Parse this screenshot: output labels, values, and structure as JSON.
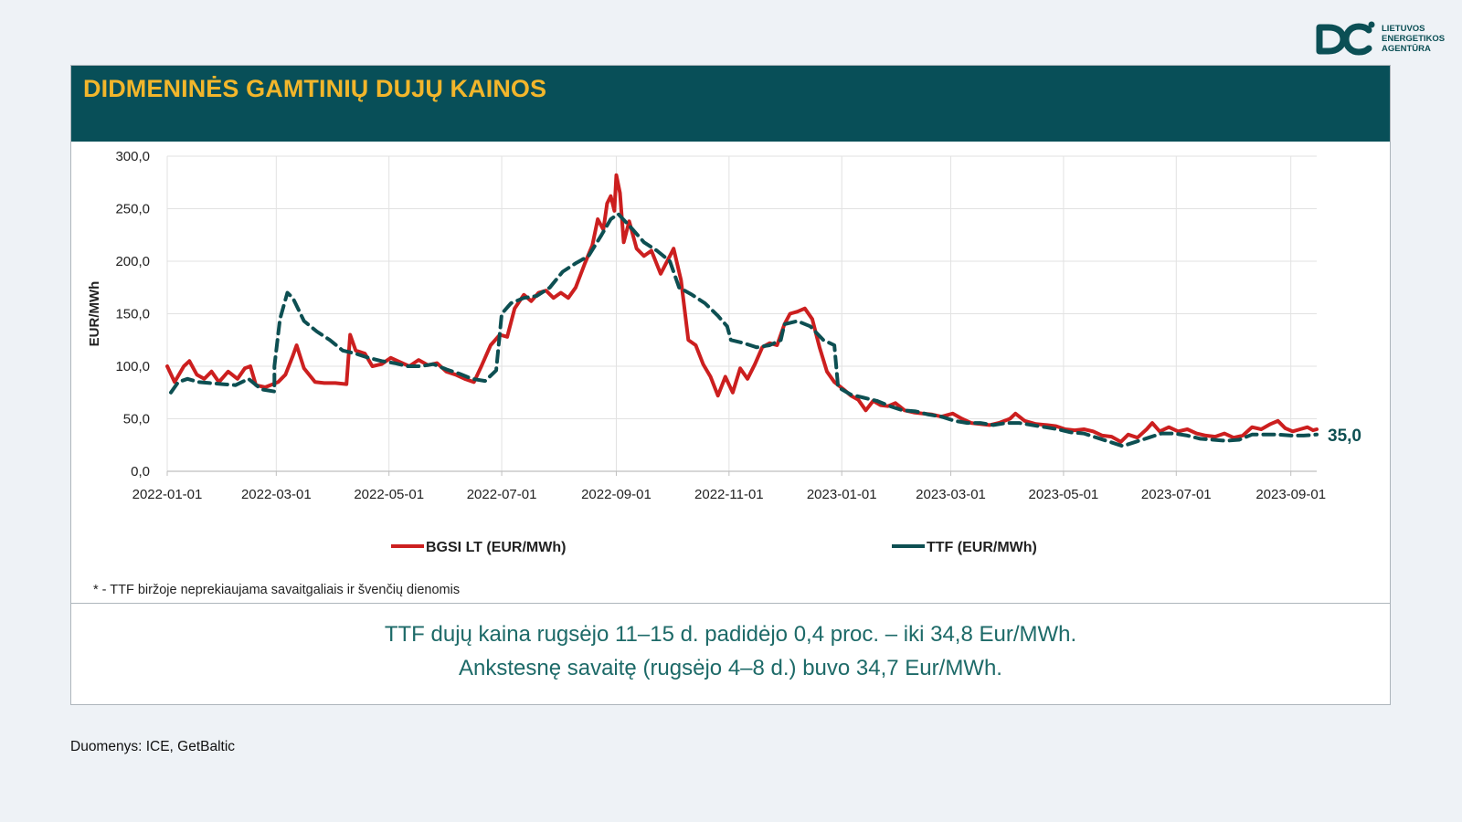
{
  "logo": {
    "line1": "LIETUVOS",
    "line2": "ENERGETIKOS",
    "line3": "AGENTŪRA"
  },
  "title": "DIDMENINĖS GAMTINIŲ DUJŲ KAINOS",
  "footnote": "* - TTF biržoje neprekiaujama savaitgaliais ir švenčių dienomis",
  "summary": {
    "line1": "TTF dujų kaina rugsėjo 11–15 d. padidėjo 0,4 proc. – iki 34,8 Eur/MWh.",
    "line2": "Ankstesnę savaitę (rugsėjo 4–8 d.) buvo 34,7 Eur/MWh."
  },
  "source": "Duomenys: ICE, GetBaltic",
  "colors": {
    "header": "#084f58",
    "title": "#f2b62b",
    "bgsi": "#cc1f1f",
    "ttf": "#0d4f52",
    "grid": "#e2e2e2"
  },
  "chart_data": {
    "type": "line",
    "ylabel": "EUR/MWh",
    "ylim": [
      0,
      300
    ],
    "yticks": [
      "0,0",
      "50,0",
      "100,0",
      "150,0",
      "200,0",
      "250,0",
      "300,0"
    ],
    "xlim": [
      "2022-01-01",
      "2023-09-15"
    ],
    "xticks": [
      "2022-01-01",
      "2022-03-01",
      "2022-05-01",
      "2022-07-01",
      "2022-09-01",
      "2022-11-01",
      "2023-01-01",
      "2023-03-01",
      "2023-05-01",
      "2023-07-01",
      "2023-09-01"
    ],
    "grid": true,
    "legend_position": "bottom",
    "end_label": "35,0",
    "series": [
      {
        "name": "BGSI LT (EUR/MWh)",
        "color": "#cc1f1f",
        "style": "solid",
        "points": [
          [
            "2022-01-01",
            100
          ],
          [
            "2022-01-05",
            85
          ],
          [
            "2022-01-10",
            100
          ],
          [
            "2022-01-13",
            105
          ],
          [
            "2022-01-17",
            92
          ],
          [
            "2022-01-21",
            88
          ],
          [
            "2022-01-25",
            95
          ],
          [
            "2022-01-29",
            85
          ],
          [
            "2022-02-03",
            95
          ],
          [
            "2022-02-08",
            88
          ],
          [
            "2022-02-12",
            98
          ],
          [
            "2022-02-15",
            100
          ],
          [
            "2022-02-18",
            82
          ],
          [
            "2022-02-23",
            80
          ],
          [
            "2022-03-02",
            85
          ],
          [
            "2022-03-06",
            92
          ],
          [
            "2022-03-10",
            110
          ],
          [
            "2022-03-12",
            120
          ],
          [
            "2022-03-16",
            98
          ],
          [
            "2022-03-22",
            85
          ],
          [
            "2022-03-27",
            84
          ],
          [
            "2022-04-02",
            84
          ],
          [
            "2022-04-08",
            83
          ],
          [
            "2022-04-10",
            130
          ],
          [
            "2022-04-13",
            115
          ],
          [
            "2022-04-18",
            112
          ],
          [
            "2022-04-22",
            100
          ],
          [
            "2022-04-27",
            102
          ],
          [
            "2022-05-02",
            108
          ],
          [
            "2022-05-07",
            104
          ],
          [
            "2022-05-12",
            100
          ],
          [
            "2022-05-17",
            106
          ],
          [
            "2022-05-22",
            101
          ],
          [
            "2022-05-27",
            103
          ],
          [
            "2022-06-01",
            95
          ],
          [
            "2022-06-06",
            92
          ],
          [
            "2022-06-11",
            88
          ],
          [
            "2022-06-16",
            85
          ],
          [
            "2022-06-20",
            100
          ],
          [
            "2022-06-25",
            120
          ],
          [
            "2022-06-30",
            130
          ],
          [
            "2022-07-04",
            128
          ],
          [
            "2022-07-08",
            155
          ],
          [
            "2022-07-13",
            168
          ],
          [
            "2022-07-17",
            162
          ],
          [
            "2022-07-21",
            170
          ],
          [
            "2022-07-25",
            172
          ],
          [
            "2022-07-29",
            165
          ],
          [
            "2022-08-02",
            170
          ],
          [
            "2022-08-06",
            165
          ],
          [
            "2022-08-10",
            175
          ],
          [
            "2022-08-15",
            198
          ],
          [
            "2022-08-19",
            215
          ],
          [
            "2022-08-22",
            240
          ],
          [
            "2022-08-25",
            230
          ],
          [
            "2022-08-27",
            255
          ],
          [
            "2022-08-29",
            262
          ],
          [
            "2022-08-31",
            248
          ],
          [
            "2022-09-01",
            282
          ],
          [
            "2022-09-03",
            265
          ],
          [
            "2022-09-05",
            218
          ],
          [
            "2022-09-08",
            238
          ],
          [
            "2022-09-12",
            212
          ],
          [
            "2022-09-16",
            205
          ],
          [
            "2022-09-20",
            210
          ],
          [
            "2022-09-25",
            188
          ],
          [
            "2022-09-30",
            205
          ],
          [
            "2022-10-02",
            212
          ],
          [
            "2022-10-06",
            182
          ],
          [
            "2022-10-10",
            125
          ],
          [
            "2022-10-14",
            120
          ],
          [
            "2022-10-18",
            102
          ],
          [
            "2022-10-22",
            90
          ],
          [
            "2022-10-26",
            72
          ],
          [
            "2022-10-30",
            90
          ],
          [
            "2022-11-03",
            75
          ],
          [
            "2022-11-07",
            98
          ],
          [
            "2022-11-11",
            88
          ],
          [
            "2022-11-15",
            102
          ],
          [
            "2022-11-19",
            118
          ],
          [
            "2022-11-23",
            122
          ],
          [
            "2022-11-27",
            120
          ],
          [
            "2022-12-01",
            140
          ],
          [
            "2022-12-04",
            150
          ],
          [
            "2022-12-08",
            152
          ],
          [
            "2022-12-12",
            155
          ],
          [
            "2022-12-16",
            145
          ],
          [
            "2022-12-20",
            118
          ],
          [
            "2022-12-24",
            95
          ],
          [
            "2022-12-28",
            85
          ],
          [
            "2023-01-02",
            78
          ],
          [
            "2023-01-06",
            72
          ],
          [
            "2023-01-10",
            68
          ],
          [
            "2023-01-14",
            58
          ],
          [
            "2023-01-18",
            67
          ],
          [
            "2023-01-22",
            63
          ],
          [
            "2023-01-26",
            62
          ],
          [
            "2023-01-30",
            65
          ],
          [
            "2023-02-04",
            58
          ],
          [
            "2023-02-09",
            56
          ],
          [
            "2023-02-14",
            55
          ],
          [
            "2023-02-19",
            54
          ],
          [
            "2023-02-24",
            52
          ],
          [
            "2023-03-02",
            55
          ],
          [
            "2023-03-07",
            50
          ],
          [
            "2023-03-12",
            46
          ],
          [
            "2023-03-17",
            45
          ],
          [
            "2023-03-22",
            44
          ],
          [
            "2023-03-27",
            46
          ],
          [
            "2023-04-02",
            50
          ],
          [
            "2023-04-05",
            55
          ],
          [
            "2023-04-10",
            48
          ],
          [
            "2023-04-16",
            45
          ],
          [
            "2023-04-22",
            44
          ],
          [
            "2023-04-27",
            43
          ],
          [
            "2023-05-02",
            40
          ],
          [
            "2023-05-07",
            39
          ],
          [
            "2023-05-12",
            40
          ],
          [
            "2023-05-17",
            38
          ],
          [
            "2023-05-22",
            34
          ],
          [
            "2023-05-27",
            33
          ],
          [
            "2023-06-01",
            28
          ],
          [
            "2023-06-05",
            35
          ],
          [
            "2023-06-10",
            32
          ],
          [
            "2023-06-15",
            40
          ],
          [
            "2023-06-18",
            46
          ],
          [
            "2023-06-22",
            38
          ],
          [
            "2023-06-27",
            42
          ],
          [
            "2023-07-02",
            38
          ],
          [
            "2023-07-07",
            40
          ],
          [
            "2023-07-12",
            36
          ],
          [
            "2023-07-17",
            34
          ],
          [
            "2023-07-22",
            33
          ],
          [
            "2023-07-27",
            36
          ],
          [
            "2023-08-01",
            32
          ],
          [
            "2023-08-06",
            34
          ],
          [
            "2023-08-11",
            42
          ],
          [
            "2023-08-16",
            40
          ],
          [
            "2023-08-21",
            45
          ],
          [
            "2023-08-25",
            48
          ],
          [
            "2023-08-29",
            41
          ],
          [
            "2023-09-02",
            38
          ],
          [
            "2023-09-06",
            40
          ],
          [
            "2023-09-10",
            42
          ],
          [
            "2023-09-13",
            39
          ],
          [
            "2023-09-15",
            40
          ]
        ]
      },
      {
        "name": "TTF (EUR/MWh)",
        "color": "#0d4f52",
        "style": "dashed",
        "points": [
          [
            "2022-01-03",
            75
          ],
          [
            "2022-01-07",
            85
          ],
          [
            "2022-01-12",
            88
          ],
          [
            "2022-01-18",
            85
          ],
          [
            "2022-01-24",
            84
          ],
          [
            "2022-01-31",
            83
          ],
          [
            "2022-02-07",
            82
          ],
          [
            "2022-02-14",
            88
          ],
          [
            "2022-02-21",
            78
          ],
          [
            "2022-02-28",
            76
          ],
          [
            "2022-02-28",
            100
          ],
          [
            "2022-03-03",
            145
          ],
          [
            "2022-03-07",
            170
          ],
          [
            "2022-03-10",
            165
          ],
          [
            "2022-03-16",
            143
          ],
          [
            "2022-03-23",
            133
          ],
          [
            "2022-03-30",
            125
          ],
          [
            "2022-04-06",
            115
          ],
          [
            "2022-04-13",
            112
          ],
          [
            "2022-04-20",
            108
          ],
          [
            "2022-04-27",
            105
          ],
          [
            "2022-05-04",
            103
          ],
          [
            "2022-05-11",
            100
          ],
          [
            "2022-05-18",
            100
          ],
          [
            "2022-05-25",
            102
          ],
          [
            "2022-06-01",
            97
          ],
          [
            "2022-06-08",
            93
          ],
          [
            "2022-06-15",
            88
          ],
          [
            "2022-06-22",
            86
          ],
          [
            "2022-06-28",
            96
          ],
          [
            "2022-07-01",
            150
          ],
          [
            "2022-07-06",
            160
          ],
          [
            "2022-07-13",
            165
          ],
          [
            "2022-07-20",
            167
          ],
          [
            "2022-07-27",
            175
          ],
          [
            "2022-08-03",
            190
          ],
          [
            "2022-08-10",
            198
          ],
          [
            "2022-08-17",
            205
          ],
          [
            "2022-08-24",
            225
          ],
          [
            "2022-08-29",
            240
          ],
          [
            "2022-09-02",
            245
          ],
          [
            "2022-09-09",
            232
          ],
          [
            "2022-09-16",
            218
          ],
          [
            "2022-09-23",
            210
          ],
          [
            "2022-09-30",
            200
          ],
          [
            "2022-10-05",
            175
          ],
          [
            "2022-10-12",
            168
          ],
          [
            "2022-10-19",
            160
          ],
          [
            "2022-10-26",
            148
          ],
          [
            "2022-10-31",
            138
          ],
          [
            "2022-11-02",
            125
          ],
          [
            "2022-11-09",
            122
          ],
          [
            "2022-11-16",
            118
          ],
          [
            "2022-11-23",
            120
          ],
          [
            "2022-11-29",
            125
          ],
          [
            "2022-12-01",
            140
          ],
          [
            "2022-12-08",
            143
          ],
          [
            "2022-12-15",
            138
          ],
          [
            "2022-12-22",
            125
          ],
          [
            "2022-12-28",
            120
          ],
          [
            "2022-12-30",
            80
          ],
          [
            "2023-01-06",
            73
          ],
          [
            "2023-01-13",
            70
          ],
          [
            "2023-01-20",
            67
          ],
          [
            "2023-01-27",
            62
          ],
          [
            "2023-02-03",
            58
          ],
          [
            "2023-02-10",
            57
          ],
          [
            "2023-02-17",
            54
          ],
          [
            "2023-02-24",
            52
          ],
          [
            "2023-03-03",
            48
          ],
          [
            "2023-03-10",
            46
          ],
          [
            "2023-03-17",
            46
          ],
          [
            "2023-03-24",
            44
          ],
          [
            "2023-03-31",
            46
          ],
          [
            "2023-04-07",
            46
          ],
          [
            "2023-04-14",
            44
          ],
          [
            "2023-04-21",
            42
          ],
          [
            "2023-04-28",
            40
          ],
          [
            "2023-05-05",
            37
          ],
          [
            "2023-05-12",
            36
          ],
          [
            "2023-05-19",
            32
          ],
          [
            "2023-05-26",
            28
          ],
          [
            "2023-06-02",
            24
          ],
          [
            "2023-06-09",
            28
          ],
          [
            "2023-06-16",
            32
          ],
          [
            "2023-06-23",
            36
          ],
          [
            "2023-06-30",
            36
          ],
          [
            "2023-07-07",
            34
          ],
          [
            "2023-07-14",
            31
          ],
          [
            "2023-07-21",
            30
          ],
          [
            "2023-07-28",
            29
          ],
          [
            "2023-08-04",
            30
          ],
          [
            "2023-08-11",
            35
          ],
          [
            "2023-08-18",
            35
          ],
          [
            "2023-08-25",
            35
          ],
          [
            "2023-09-01",
            34
          ],
          [
            "2023-09-08",
            34
          ],
          [
            "2023-09-15",
            35
          ]
        ]
      }
    ]
  }
}
